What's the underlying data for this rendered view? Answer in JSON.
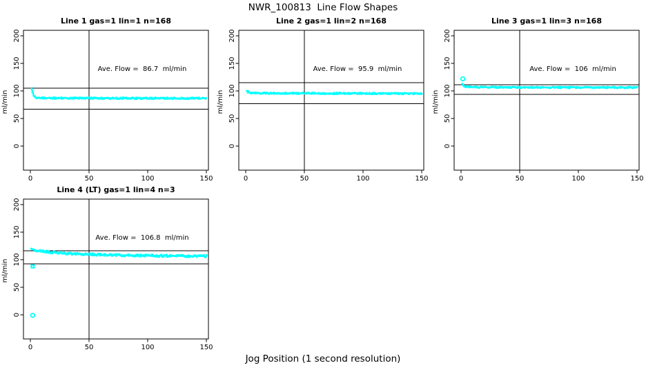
{
  "page": {
    "title": "NWR_100813  Line Flow Shapes",
    "outer_xlabel": "Jog Position (1 second resolution)"
  },
  "style": {
    "point_color": "#00ffff",
    "line_color": "#000000",
    "background": "#ffffff"
  },
  "chart_data": [
    {
      "type": "scatter",
      "title": "Line 1 gas=1 lin=1 n=168",
      "annotation": "Ave. Flow =  86.7  ml/min",
      "ave_flow_ml_min": 86.7,
      "ylabel": "ml/min",
      "x_ticks": [
        0,
        50,
        100,
        150
      ],
      "y_ticks": [
        0,
        50,
        100,
        150,
        200
      ],
      "xlim": [
        0,
        155
      ],
      "ylim_shown": [
        0,
        200
      ],
      "vline_x": 50,
      "hlines": [
        105,
        67
      ],
      "band": [
        [
          1,
          104
        ],
        [
          2,
          96
        ],
        [
          3,
          91
        ],
        [
          5,
          88
        ],
        [
          12,
          87
        ],
        [
          150,
          86.5
        ]
      ],
      "band_halfwidth": 1.5,
      "outliers": []
    },
    {
      "type": "scatter",
      "title": "Line 2 gas=1 lin=2 n=168",
      "annotation": "Ave. Flow =  95.9  ml/min",
      "ave_flow_ml_min": 95.9,
      "ylabel": "ml/min",
      "x_ticks": [
        0,
        50,
        100,
        150
      ],
      "y_ticks": [
        0,
        50,
        100,
        150,
        200
      ],
      "xlim": [
        0,
        155
      ],
      "ylim_shown": [
        0,
        200
      ],
      "vline_x": 50,
      "hlines": [
        115,
        77
      ],
      "band": [
        [
          1,
          101
        ],
        [
          2,
          98.5
        ],
        [
          4,
          96.5
        ],
        [
          12,
          95.8
        ],
        [
          150,
          95.2
        ]
      ],
      "band_halfwidth": 1.5,
      "outliers": []
    },
    {
      "type": "scatter",
      "title": "Line 3 gas=1 lin=3 n=168",
      "annotation": "Ave. Flow =  106  ml/min",
      "ave_flow_ml_min": 106,
      "ylabel": "ml/min",
      "x_ticks": [
        0,
        50,
        100,
        150
      ],
      "y_ticks": [
        0,
        50,
        100,
        150,
        200
      ],
      "xlim": [
        0,
        155
      ],
      "ylim_shown": [
        0,
        200
      ],
      "vline_x": 50,
      "hlines": [
        111.5,
        94
      ],
      "band": [
        [
          1,
          113
        ],
        [
          2,
          110
        ],
        [
          4,
          108
        ],
        [
          12,
          106.8
        ],
        [
          150,
          106.2
        ]
      ],
      "band_halfwidth": 1.5,
      "outliers": [
        {
          "x": 1.5,
          "y": 122,
          "marker": "circle"
        }
      ]
    },
    {
      "type": "scatter",
      "title": "Line 4 (LT) gas=1 lin=4 n=3",
      "annotation": "Ave. Flow =  106.8  ml/min",
      "ave_flow_ml_min": 106.8,
      "ylabel": "ml/min",
      "x_ticks": [
        0,
        50,
        100,
        150
      ],
      "y_ticks": [
        0,
        50,
        100,
        150,
        200
      ],
      "xlim": [
        0,
        155
      ],
      "ylim_shown": [
        0,
        200
      ],
      "vline_x": 50,
      "hlines": [
        116,
        92.5
      ],
      "band": [
        [
          1,
          118.5
        ],
        [
          6,
          116.5
        ],
        [
          15,
          114
        ],
        [
          30,
          111.5
        ],
        [
          50,
          109.8
        ],
        [
          70,
          108.5
        ],
        [
          95,
          107.5
        ],
        [
          120,
          107
        ],
        [
          150,
          106.3
        ]
      ],
      "band_halfwidth": 2.2,
      "outliers": [
        {
          "x": 2,
          "y": 88,
          "marker": "square"
        },
        {
          "x": 2,
          "y": -1,
          "marker": "circle"
        }
      ]
    }
  ]
}
